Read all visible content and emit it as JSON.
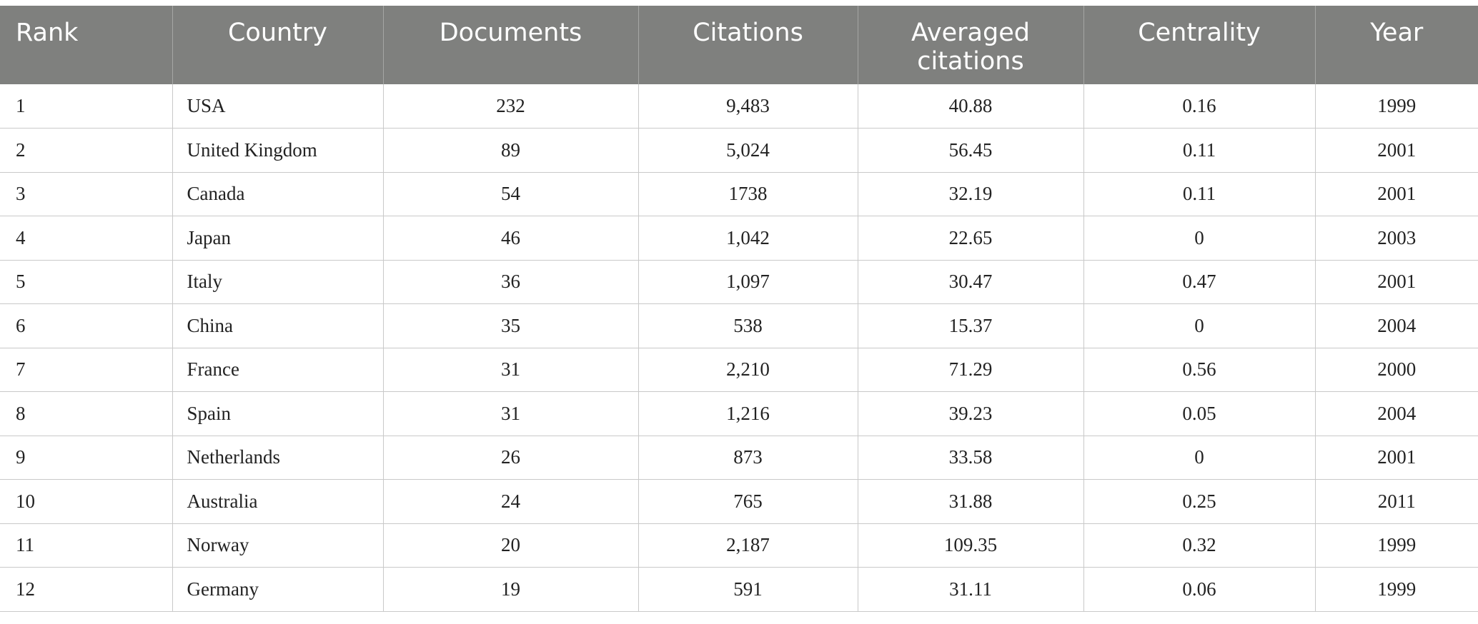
{
  "table": {
    "headers": {
      "rank": "Rank",
      "country": "Country",
      "documents": "Documents",
      "citations": "Citations",
      "averaged_line1": "Averaged",
      "averaged_line2": "citations",
      "centrality": "Centrality",
      "year": "Year"
    },
    "rows": [
      {
        "rank": "1",
        "country": "USA",
        "documents": "232",
        "citations": "9,483",
        "averaged": "40.88",
        "centrality": "0.16",
        "year": "1999"
      },
      {
        "rank": "2",
        "country": "United Kingdom",
        "documents": "89",
        "citations": "5,024",
        "averaged": "56.45",
        "centrality": "0.11",
        "year": "2001"
      },
      {
        "rank": "3",
        "country": "Canada",
        "documents": "54",
        "citations": "1738",
        "averaged": "32.19",
        "centrality": "0.11",
        "year": "2001"
      },
      {
        "rank": "4",
        "country": "Japan",
        "documents": "46",
        "citations": "1,042",
        "averaged": "22.65",
        "centrality": "0",
        "year": "2003"
      },
      {
        "rank": "5",
        "country": "Italy",
        "documents": "36",
        "citations": "1,097",
        "averaged": "30.47",
        "centrality": "0.47",
        "year": "2001"
      },
      {
        "rank": "6",
        "country": "China",
        "documents": "35",
        "citations": "538",
        "averaged": "15.37",
        "centrality": "0",
        "year": "2004"
      },
      {
        "rank": "7",
        "country": "France",
        "documents": "31",
        "citations": "2,210",
        "averaged": "71.29",
        "centrality": "0.56",
        "year": "2000"
      },
      {
        "rank": "8",
        "country": "Spain",
        "documents": "31",
        "citations": "1,216",
        "averaged": "39.23",
        "centrality": "0.05",
        "year": "2004"
      },
      {
        "rank": "9",
        "country": "Netherlands",
        "documents": "26",
        "citations": "873",
        "averaged": "33.58",
        "centrality": "0",
        "year": "2001"
      },
      {
        "rank": "10",
        "country": "Australia",
        "documents": "24",
        "citations": "765",
        "averaged": "31.88",
        "centrality": "0.25",
        "year": "2011"
      },
      {
        "rank": "11",
        "country": "Norway",
        "documents": "20",
        "citations": "2,187",
        "averaged": "109.35",
        "centrality": "0.32",
        "year": "1999"
      },
      {
        "rank": "12",
        "country": "Germany",
        "documents": "19",
        "citations": "591",
        "averaged": "31.11",
        "centrality": "0.06",
        "year": "1999"
      }
    ]
  }
}
